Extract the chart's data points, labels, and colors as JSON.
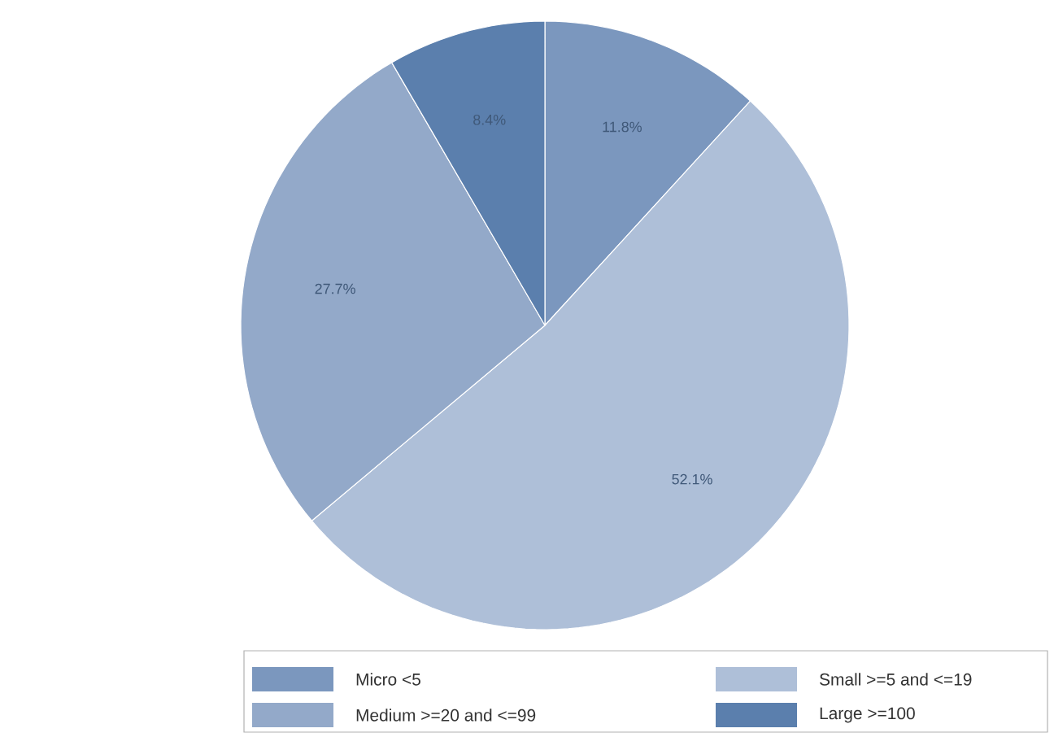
{
  "chart_data": {
    "type": "pie",
    "categories": [
      "Micro <5",
      "Small >=5 and <=19",
      "Medium >=20 and <=99",
      "Large >=100"
    ],
    "values": [
      11.8,
      52.1,
      27.7,
      8.4
    ],
    "colors": [
      "#7b97be",
      "#aebfd8",
      "#93a9c9",
      "#5b7fad"
    ],
    "value_labels": [
      "11.8%",
      "52.1%",
      "27.7%",
      "8.4%"
    ],
    "legend": "bottom"
  }
}
